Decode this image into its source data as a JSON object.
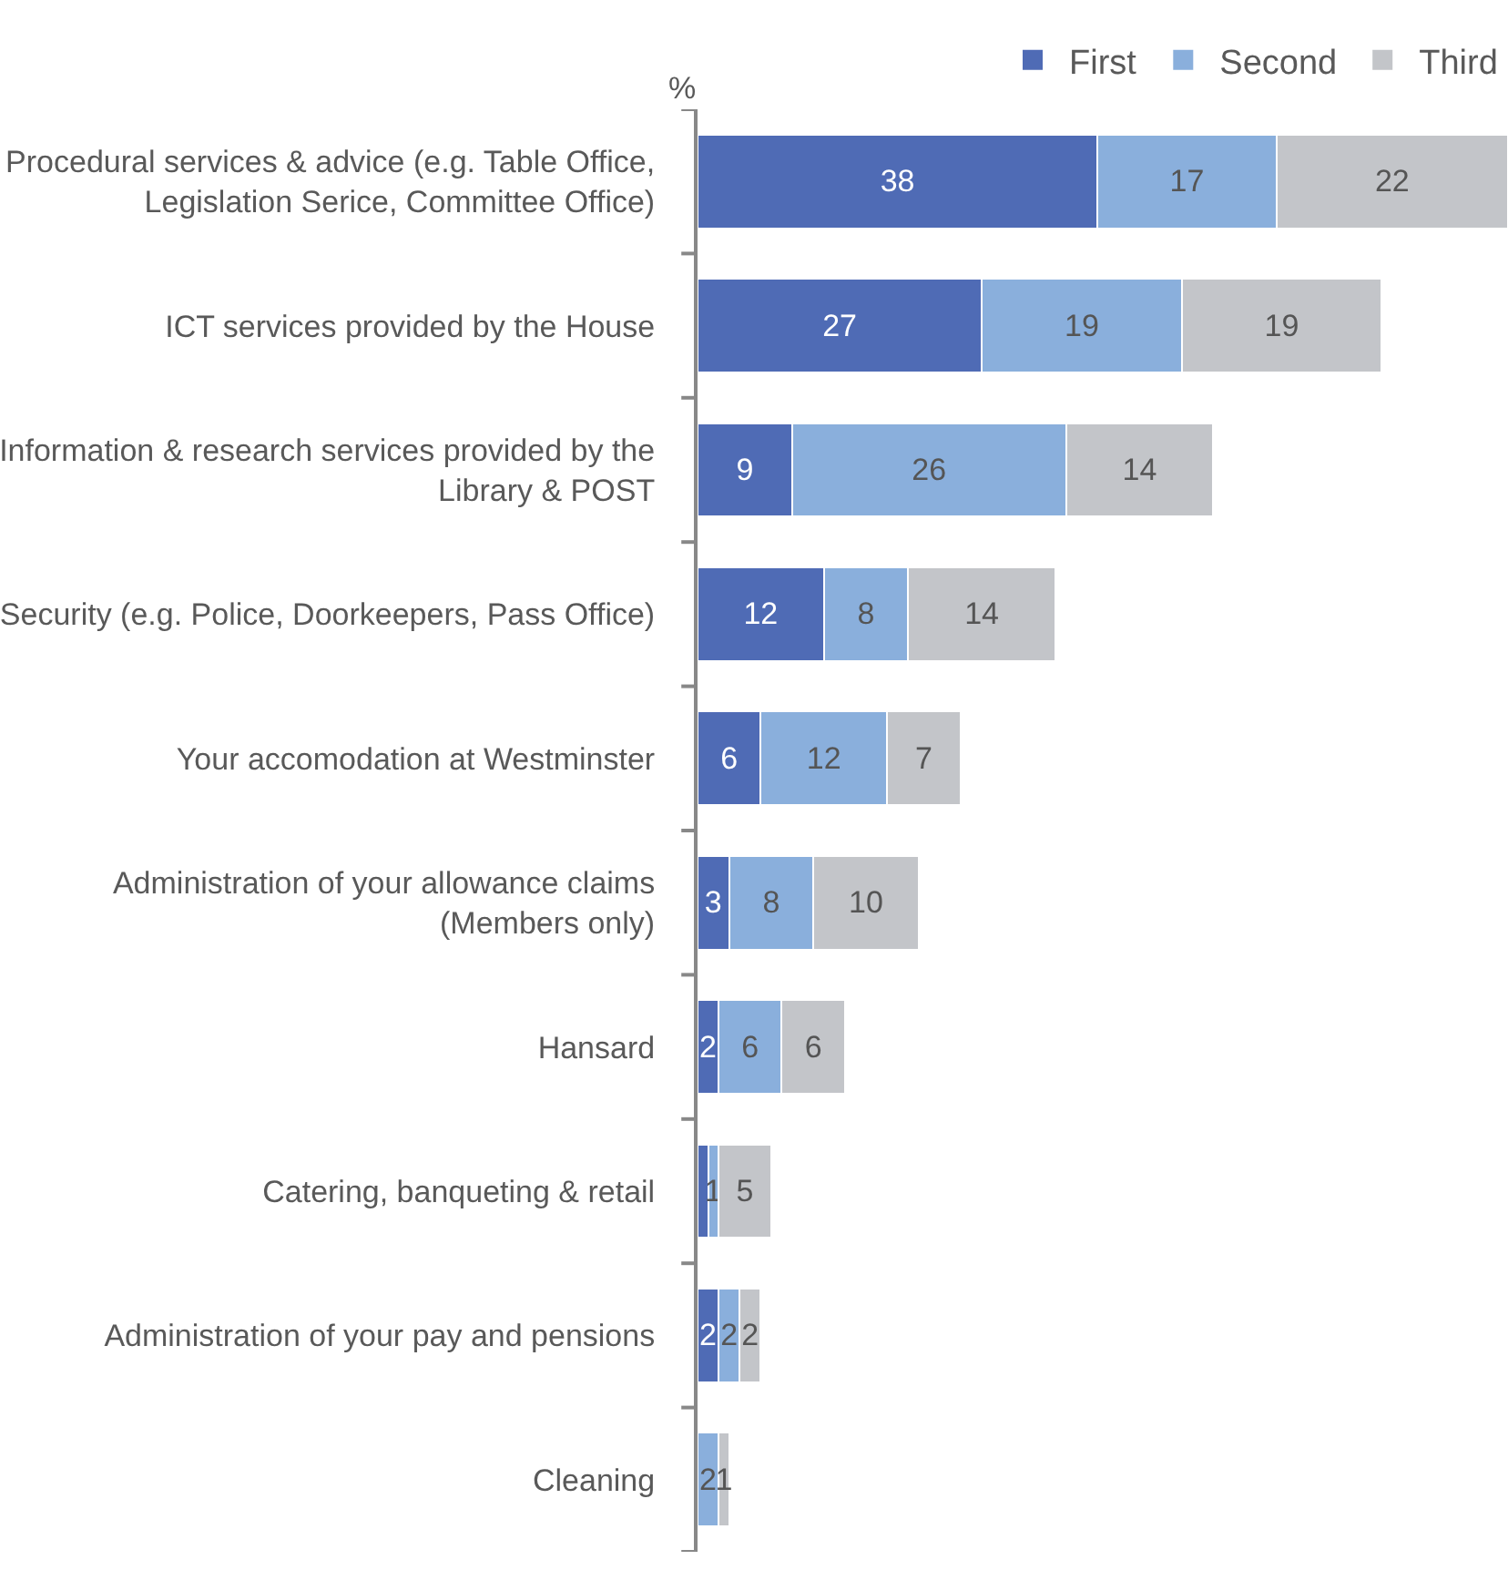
{
  "chart_data": {
    "type": "bar",
    "orientation": "horizontal",
    "stacked": true,
    "xlabel": "%",
    "legend": "top right",
    "xlim": [
      0,
      77
    ],
    "tick_labels": "y",
    "categories": [
      "Procedural services & advice (e.g. Table Office,\nLegislation Serice, Committee Office)",
      "ICT services provided by the House",
      "Information & research services provided by the\nLibrary & POST",
      "Security (e.g. Police, Doorkeepers, Pass Office)",
      "Your accomodation at Westminster",
      "Administration of your allowance claims\n(Members only)",
      "Hansard",
      "Catering, banqueting & retail",
      "Administration of your pay and pensions",
      "Cleaning"
    ],
    "series": [
      {
        "name": "First",
        "color": "#4f6bb5",
        "values": [
          38,
          27,
          9,
          12,
          6,
          3,
          2,
          1,
          2,
          0
        ],
        "value_labels": [
          "38",
          "27",
          "9",
          "12",
          "6",
          "3",
          "2",
          null,
          "2",
          null
        ]
      },
      {
        "name": "Second",
        "color": "#8aafdc",
        "values": [
          17,
          19,
          26,
          8,
          12,
          8,
          6,
          1,
          2,
          2
        ],
        "value_labels": [
          "17",
          "19",
          "26",
          "8",
          "12",
          "8",
          "6",
          "1",
          "2",
          "2"
        ]
      },
      {
        "name": "Third",
        "color": "#c3c5c9",
        "values": [
          22,
          19,
          14,
          14,
          7,
          10,
          6,
          5,
          2,
          1
        ],
        "value_labels": [
          "22",
          "19",
          "14",
          "14",
          "7",
          "10",
          "6",
          "5",
          "2",
          "1"
        ]
      }
    ]
  }
}
